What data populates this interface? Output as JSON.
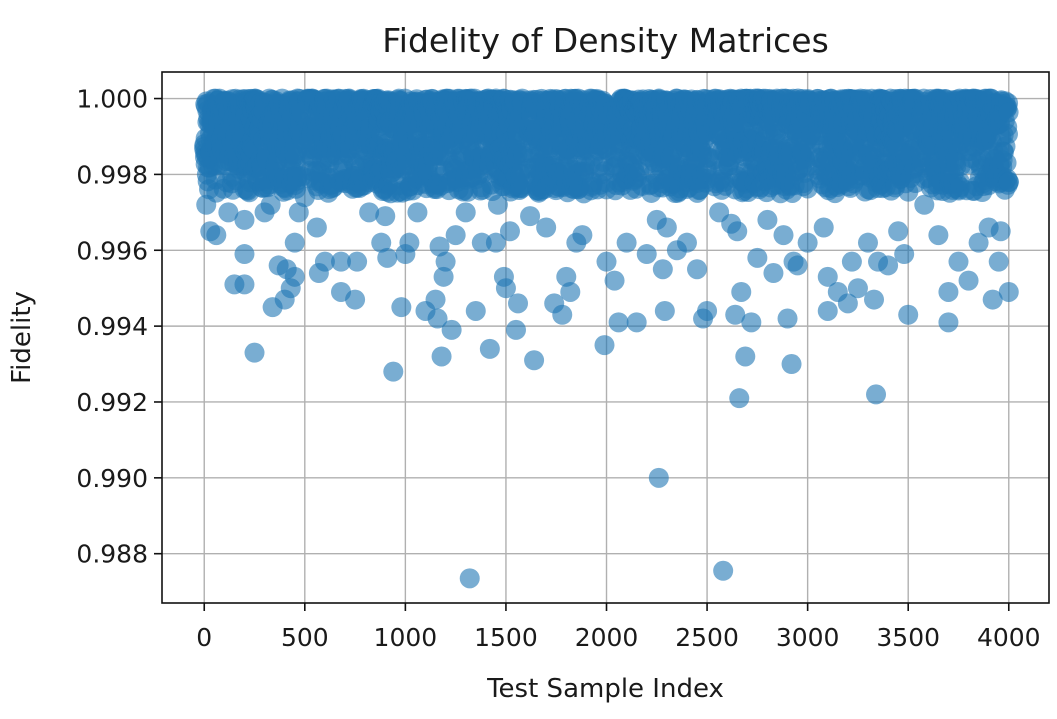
{
  "chart_data": {
    "type": "scatter",
    "title": "Fidelity of Density Matrices",
    "xlabel": "Test Sample Index",
    "ylabel": "Fidelity",
    "xlim": [
      -210,
      4200
    ],
    "ylim": [
      0.9867,
      1.0007
    ],
    "grid": true,
    "x_ticks": [
      0,
      500,
      1000,
      1500,
      2000,
      2500,
      3000,
      3500,
      4000
    ],
    "x_tick_labels": [
      "0",
      "500",
      "1000",
      "1500",
      "2000",
      "2500",
      "3000",
      "3500",
      "4000"
    ],
    "y_ticks": [
      0.988,
      0.99,
      0.992,
      0.994,
      0.996,
      0.998,
      1.0
    ],
    "y_tick_labels": [
      "0.988",
      "0.990",
      "0.992",
      "0.994",
      "0.996",
      "0.998",
      "1.000"
    ],
    "marker_color": "#1f77b4",
    "marker_alpha": 0.6,
    "dense_band": {
      "description": "approximately 4000 samples densely concentrated between fidelity 0.9975 and 1.0000",
      "x_range": [
        0,
        4000
      ],
      "y_range": [
        0.9975,
        1.0
      ],
      "gaps_near_x": [
        500,
        1600,
        2020,
        2520,
        3030,
        3550
      ]
    },
    "series": [
      {
        "name": "Fidelity",
        "points": [
          {
            "x": 10,
            "y": 0.9972
          },
          {
            "x": 30,
            "y": 0.9965
          },
          {
            "x": 60,
            "y": 0.9964
          },
          {
            "x": 120,
            "y": 0.997
          },
          {
            "x": 150,
            "y": 0.9951
          },
          {
            "x": 200,
            "y": 0.9951
          },
          {
            "x": 200,
            "y": 0.9959
          },
          {
            "x": 200,
            "y": 0.9968
          },
          {
            "x": 250,
            "y": 0.9933
          },
          {
            "x": 300,
            "y": 0.997
          },
          {
            "x": 330,
            "y": 0.9972
          },
          {
            "x": 340,
            "y": 0.9945
          },
          {
            "x": 370,
            "y": 0.9956
          },
          {
            "x": 400,
            "y": 0.9947
          },
          {
            "x": 410,
            "y": 0.9955
          },
          {
            "x": 430,
            "y": 0.995
          },
          {
            "x": 450,
            "y": 0.9953
          },
          {
            "x": 450,
            "y": 0.9962
          },
          {
            "x": 470,
            "y": 0.997
          },
          {
            "x": 500,
            "y": 0.9974
          },
          {
            "x": 560,
            "y": 0.9966
          },
          {
            "x": 570,
            "y": 0.9954
          },
          {
            "x": 600,
            "y": 0.9957
          },
          {
            "x": 680,
            "y": 0.9957
          },
          {
            "x": 680,
            "y": 0.9949
          },
          {
            "x": 750,
            "y": 0.9947
          },
          {
            "x": 760,
            "y": 0.9957
          },
          {
            "x": 820,
            "y": 0.997
          },
          {
            "x": 880,
            "y": 0.9962
          },
          {
            "x": 900,
            "y": 0.9969
          },
          {
            "x": 910,
            "y": 0.9958
          },
          {
            "x": 940,
            "y": 0.9928
          },
          {
            "x": 980,
            "y": 0.9945
          },
          {
            "x": 1000,
            "y": 0.9959
          },
          {
            "x": 1020,
            "y": 0.9962
          },
          {
            "x": 1060,
            "y": 0.997
          },
          {
            "x": 1100,
            "y": 0.9944
          },
          {
            "x": 1150,
            "y": 0.9947
          },
          {
            "x": 1160,
            "y": 0.9942
          },
          {
            "x": 1170,
            "y": 0.9961
          },
          {
            "x": 1180,
            "y": 0.9932
          },
          {
            "x": 1190,
            "y": 0.9953
          },
          {
            "x": 1200,
            "y": 0.9957
          },
          {
            "x": 1230,
            "y": 0.9939
          },
          {
            "x": 1250,
            "y": 0.9964
          },
          {
            "x": 1300,
            "y": 0.997
          },
          {
            "x": 1320,
            "y": 0.98735
          },
          {
            "x": 1350,
            "y": 0.9944
          },
          {
            "x": 1380,
            "y": 0.9962
          },
          {
            "x": 1420,
            "y": 0.9934
          },
          {
            "x": 1450,
            "y": 0.9962
          },
          {
            "x": 1490,
            "y": 0.9953
          },
          {
            "x": 1500,
            "y": 0.995
          },
          {
            "x": 1520,
            "y": 0.9965
          },
          {
            "x": 1550,
            "y": 0.9939
          },
          {
            "x": 1560,
            "y": 0.9946
          },
          {
            "x": 1620,
            "y": 0.9969
          },
          {
            "x": 1640,
            "y": 0.9931
          },
          {
            "x": 1700,
            "y": 0.9966
          },
          {
            "x": 1740,
            "y": 0.9946
          },
          {
            "x": 1780,
            "y": 0.9943
          },
          {
            "x": 1800,
            "y": 0.9953
          },
          {
            "x": 1820,
            "y": 0.9949
          },
          {
            "x": 1850,
            "y": 0.9962
          },
          {
            "x": 1990,
            "y": 0.9935
          },
          {
            "x": 2000,
            "y": 0.9957
          },
          {
            "x": 2040,
            "y": 0.9952
          },
          {
            "x": 2060,
            "y": 0.9941
          },
          {
            "x": 2100,
            "y": 0.9962
          },
          {
            "x": 2150,
            "y": 0.9941
          },
          {
            "x": 2200,
            "y": 0.9959
          },
          {
            "x": 2250,
            "y": 0.9968
          },
          {
            "x": 2260,
            "y": 0.99
          },
          {
            "x": 2280,
            "y": 0.9955
          },
          {
            "x": 2290,
            "y": 0.9944
          },
          {
            "x": 2300,
            "y": 0.9966
          },
          {
            "x": 2350,
            "y": 0.996
          },
          {
            "x": 2400,
            "y": 0.9962
          },
          {
            "x": 2450,
            "y": 0.9955
          },
          {
            "x": 2480,
            "y": 0.9942
          },
          {
            "x": 2500,
            "y": 0.9944
          },
          {
            "x": 2560,
            "y": 0.997
          },
          {
            "x": 2580,
            "y": 0.98755
          },
          {
            "x": 2640,
            "y": 0.9943
          },
          {
            "x": 2650,
            "y": 0.9965
          },
          {
            "x": 2660,
            "y": 0.9921
          },
          {
            "x": 2670,
            "y": 0.9949
          },
          {
            "x": 2690,
            "y": 0.9932
          },
          {
            "x": 2720,
            "y": 0.9941
          },
          {
            "x": 2750,
            "y": 0.9958
          },
          {
            "x": 2800,
            "y": 0.9968
          },
          {
            "x": 2830,
            "y": 0.9954
          },
          {
            "x": 2880,
            "y": 0.9964
          },
          {
            "x": 2900,
            "y": 0.9942
          },
          {
            "x": 2920,
            "y": 0.993
          },
          {
            "x": 2930,
            "y": 0.9957
          },
          {
            "x": 2950,
            "y": 0.9956
          },
          {
            "x": 3000,
            "y": 0.9962
          },
          {
            "x": 3080,
            "y": 0.9966
          },
          {
            "x": 3100,
            "y": 0.9944
          },
          {
            "x": 3100,
            "y": 0.9953
          },
          {
            "x": 3150,
            "y": 0.9949
          },
          {
            "x": 3200,
            "y": 0.9946
          },
          {
            "x": 3220,
            "y": 0.9957
          },
          {
            "x": 3250,
            "y": 0.995
          },
          {
            "x": 3300,
            "y": 0.9962
          },
          {
            "x": 3330,
            "y": 0.9947
          },
          {
            "x": 3340,
            "y": 0.9922
          },
          {
            "x": 3350,
            "y": 0.9957
          },
          {
            "x": 3400,
            "y": 0.9956
          },
          {
            "x": 3450,
            "y": 0.9965
          },
          {
            "x": 3480,
            "y": 0.9959
          },
          {
            "x": 3500,
            "y": 0.9943
          },
          {
            "x": 3650,
            "y": 0.9964
          },
          {
            "x": 3700,
            "y": 0.9949
          },
          {
            "x": 3700,
            "y": 0.9941
          },
          {
            "x": 3750,
            "y": 0.9957
          },
          {
            "x": 3800,
            "y": 0.9952
          },
          {
            "x": 3850,
            "y": 0.9962
          },
          {
            "x": 3900,
            "y": 0.9966
          },
          {
            "x": 3920,
            "y": 0.9947
          },
          {
            "x": 3950,
            "y": 0.9957
          },
          {
            "x": 3960,
            "y": 0.9965
          },
          {
            "x": 4000,
            "y": 0.9949
          },
          {
            "x": 1460,
            "y": 0.9972
          },
          {
            "x": 1880,
            "y": 0.9964
          },
          {
            "x": 2620,
            "y": 0.9967
          },
          {
            "x": 3580,
            "y": 0.9972
          }
        ]
      }
    ]
  }
}
